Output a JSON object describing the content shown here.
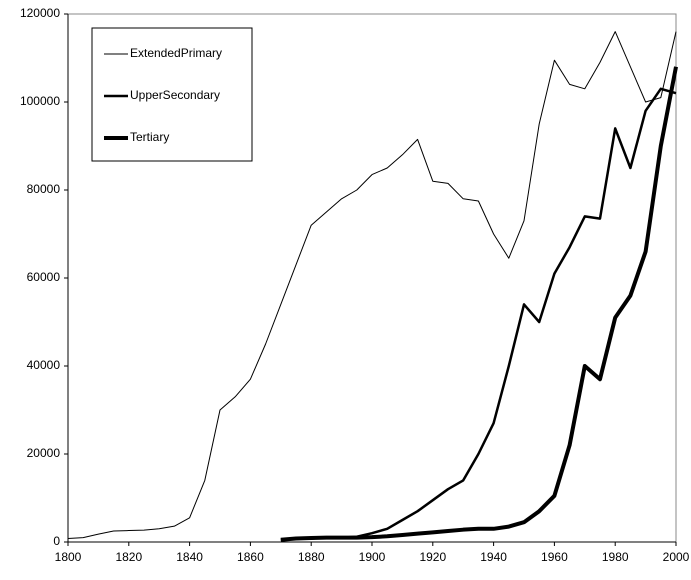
{
  "chart_data": {
    "type": "line",
    "x": [
      1800,
      1805,
      1810,
      1815,
      1820,
      1825,
      1830,
      1835,
      1840,
      1845,
      1850,
      1855,
      1860,
      1865,
      1870,
      1875,
      1880,
      1885,
      1890,
      1895,
      1900,
      1905,
      1910,
      1915,
      1920,
      1925,
      1930,
      1935,
      1940,
      1945,
      1950,
      1955,
      1960,
      1965,
      1970,
      1975,
      1980,
      1985,
      1990,
      1995,
      2000
    ],
    "series": [
      {
        "name": "ExtendedPrimary",
        "color": "#000000",
        "line_width": 1,
        "values": [
          800,
          1000,
          1800,
          2500,
          2600,
          2700,
          3000,
          3600,
          5500,
          14000,
          30000,
          33000,
          37000,
          45000,
          54000,
          63000,
          72000,
          75000,
          78000,
          80000,
          83500,
          85000,
          88000,
          91500,
          82000,
          81500,
          78000,
          77500,
          70000,
          64500,
          73000,
          95000,
          109500,
          104000,
          103000,
          109000,
          116000,
          108000,
          100000,
          101000,
          116000
        ]
      },
      {
        "name": "UpperSecondary",
        "color": "#000000",
        "line_width": 2.5,
        "values": [
          null,
          null,
          null,
          null,
          null,
          null,
          null,
          null,
          null,
          null,
          null,
          null,
          null,
          null,
          500,
          700,
          800,
          1000,
          1000,
          1200,
          2000,
          3000,
          5000,
          7000,
          9500,
          12000,
          14000,
          20000,
          27000,
          40000,
          54000,
          50000,
          61000,
          67000,
          74000,
          73500,
          94000,
          85000,
          98000,
          103000,
          102000
        ]
      },
      {
        "name": "Tertiary",
        "color": "#000000",
        "line_width": 4,
        "values": [
          null,
          null,
          null,
          null,
          null,
          null,
          null,
          null,
          null,
          null,
          null,
          null,
          null,
          null,
          500,
          800,
          900,
          1000,
          1000,
          1000,
          1100,
          1300,
          1600,
          1900,
          2200,
          2500,
          2800,
          3000,
          3000,
          3500,
          4500,
          7000,
          10500,
          22000,
          40000,
          37000,
          51000,
          56000,
          66000,
          90000,
          108000
        ]
      }
    ],
    "xlim": [
      1800,
      2000
    ],
    "xticks": [
      1800,
      1820,
      1840,
      1860,
      1880,
      1900,
      1920,
      1940,
      1960,
      1980,
      2000
    ],
    "ylim": [
      0,
      120000
    ],
    "yticks": [
      0,
      20000,
      40000,
      60000,
      80000,
      100000,
      120000
    ],
    "grid": false,
    "legend": "upper-left"
  }
}
